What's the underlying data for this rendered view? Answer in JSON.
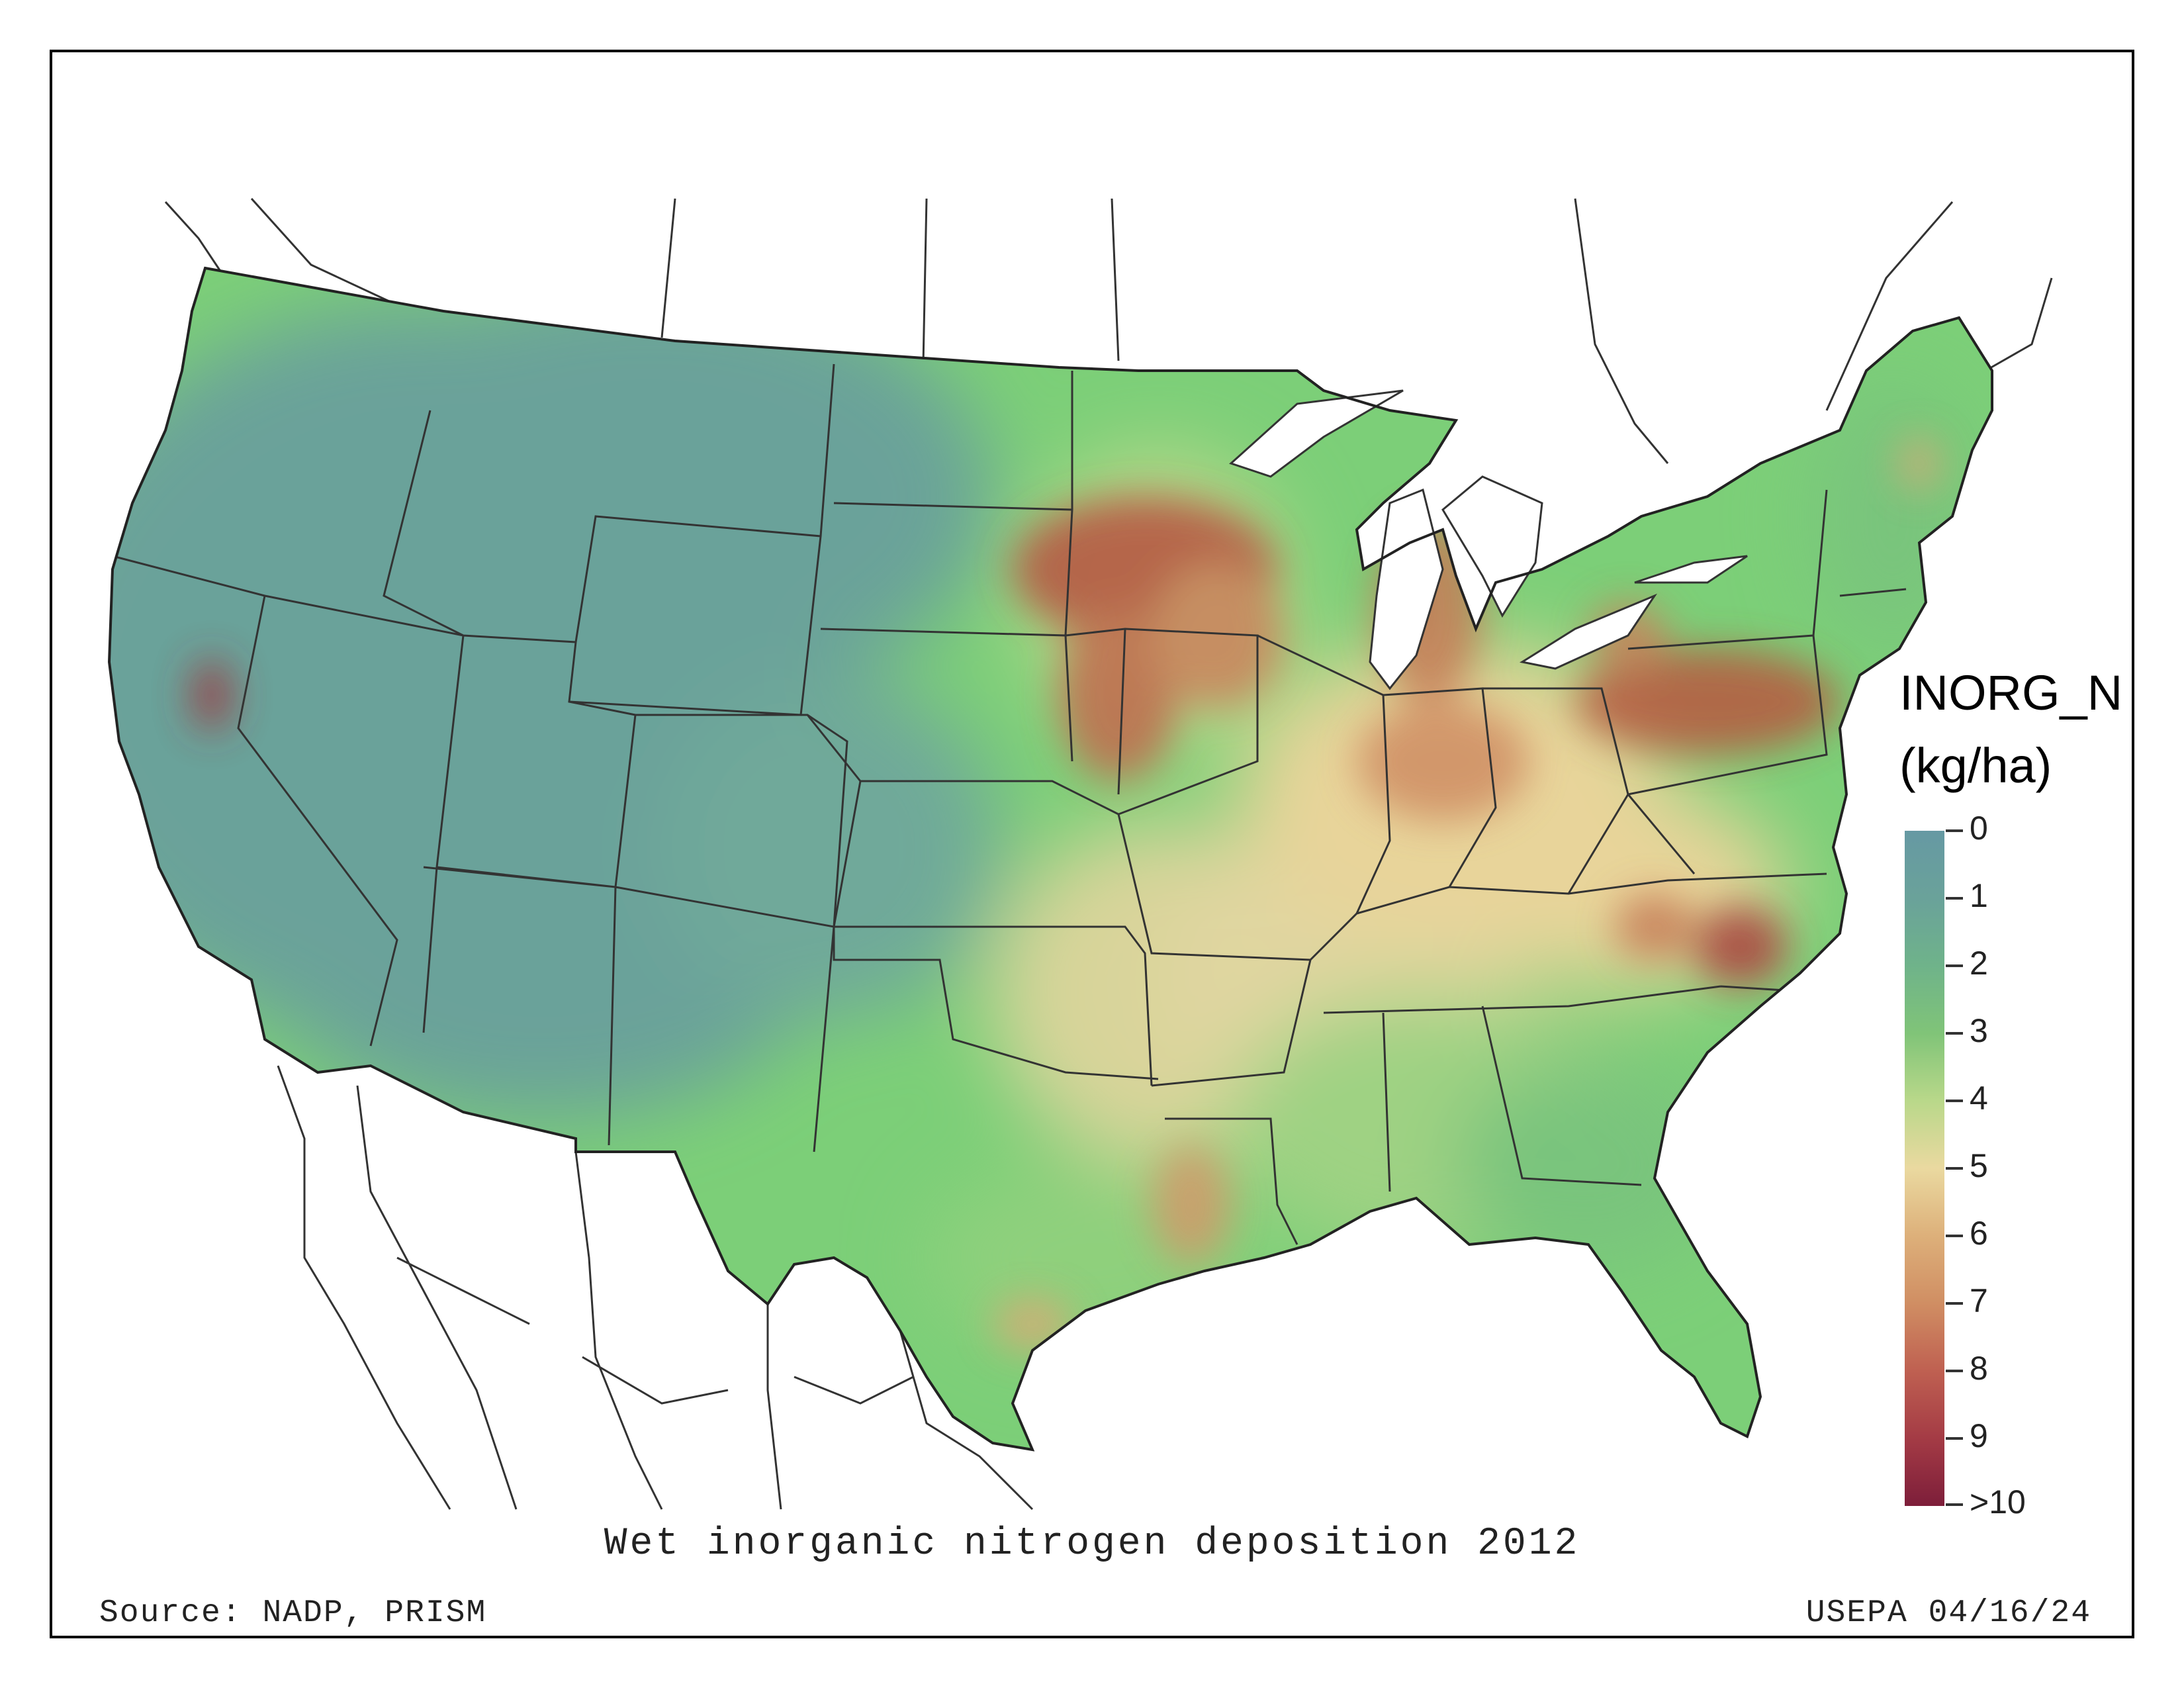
{
  "title": "Wet inorganic nitrogen deposition 2012",
  "source": "Source: NADP, PRISM",
  "credit": "USEPA 04/16/24",
  "legend": {
    "title_line1": "INORG_N",
    "title_line2": "(kg/ha)",
    "ticks": [
      "0",
      "1",
      "2",
      "3",
      "4",
      "5",
      "6",
      "7",
      "8",
      "9",
      ">10"
    ],
    "colors": [
      "#6699a3",
      "#6aa29a",
      "#6fb38a",
      "#80c478",
      "#b9d88a",
      "#ead9a0",
      "#ddb07a",
      "#d08e63",
      "#bf6051",
      "#a43b45",
      "#7d1e3a"
    ]
  },
  "colors": {
    "west_low": "#6aa29a",
    "midrange": "#7ccf78",
    "moderate": "#e8d49a",
    "high": "#b5523f",
    "boundary": "#333333"
  }
}
